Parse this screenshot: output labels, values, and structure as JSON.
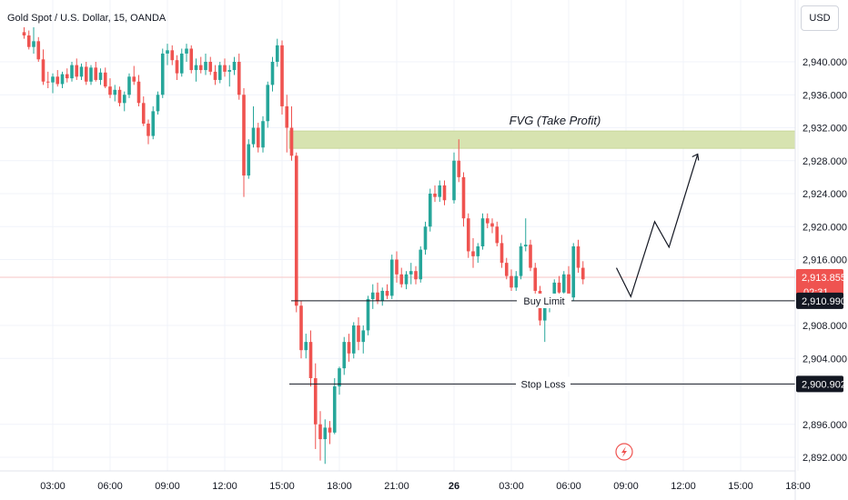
{
  "header": {
    "title": "Gold Spot / U.S. Dollar, 15, OANDA",
    "currency_button": "USD"
  },
  "colors": {
    "up": "#26a69a",
    "down": "#ef5350",
    "fvg_fill": "#d7e3b0",
    "grid": "#f0f3fa",
    "text": "#131722"
  },
  "chart_data": {
    "type": "candlestick",
    "title": "Gold Spot / U.S. Dollar, 15, OANDA",
    "y_ticks": [
      2940,
      2936,
      2932,
      2928,
      2924,
      2920,
      2916,
      2908,
      2904,
      2896,
      2892
    ],
    "y_tick_labels": [
      "2,940.000",
      "2,936.000",
      "2,932.000",
      "2,928.000",
      "2,924.000",
      "2,920.000",
      "2,916.000",
      "2,908.000",
      "2,904.000",
      "2,896.000",
      "2,892.000"
    ],
    "x_tick_labels": [
      "03:00",
      "06:00",
      "09:00",
      "12:00",
      "15:00",
      "18:00",
      "21:00",
      "26",
      "03:00",
      "06:00",
      "09:00",
      "12:00",
      "15:00",
      "18:00"
    ],
    "fvg": {
      "label": "FVG (Take Profit)",
      "low": 2929.5,
      "high": 2931.6
    },
    "buy_limit": {
      "label": "Buy Limit",
      "price": 2910.99,
      "price_label": "2,910.990"
    },
    "stop_loss": {
      "label": "Stop Loss",
      "price": 2900.902,
      "price_label": "2,900.902"
    },
    "current_price": {
      "price": 2913.855,
      "price_label": "2,913.855",
      "countdown": "02:31"
    },
    "projection": [
      [
        "2025-02-26 08:30",
        2915.0
      ],
      [
        "2025-02-26 09:15",
        2911.5
      ],
      [
        "2025-02-26 10:30",
        2920.6
      ],
      [
        "2025-02-26 11:15",
        2917.5
      ],
      [
        "2025-02-26 12:45",
        2928.8
      ]
    ],
    "candles": [
      [
        "2025-02-25 01:30",
        2943.6,
        2944.2,
        2942.8,
        2943.2
      ],
      [
        "2025-02-25 01:45",
        2943.2,
        2943.8,
        2941.5,
        2941.8
      ],
      [
        "2025-02-25 02:00",
        2941.8,
        2944.2,
        2941.0,
        2942.5
      ],
      [
        "2025-02-25 02:15",
        2942.5,
        2943.0,
        2940.0,
        2940.3
      ],
      [
        "2025-02-25 02:30",
        2940.3,
        2941.5,
        2937.2,
        2937.6
      ],
      [
        "2025-02-25 02:45",
        2937.6,
        2938.8,
        2936.8,
        2937.5
      ],
      [
        "2025-02-25 03:00",
        2937.5,
        2938.6,
        2936.2,
        2938.2
      ],
      [
        "2025-02-25 03:15",
        2938.2,
        2939.0,
        2937.0,
        2937.3
      ],
      [
        "2025-02-25 03:30",
        2937.3,
        2938.8,
        2936.8,
        2938.5
      ],
      [
        "2025-02-25 03:45",
        2938.5,
        2939.2,
        2937.5,
        2938.0
      ],
      [
        "2025-02-25 04:00",
        2938.0,
        2940.0,
        2937.6,
        2939.6
      ],
      [
        "2025-02-25 04:15",
        2939.6,
        2940.4,
        2937.8,
        2938.2
      ],
      [
        "2025-02-25 04:30",
        2938.2,
        2939.8,
        2937.8,
        2939.4
      ],
      [
        "2025-02-25 04:45",
        2939.4,
        2940.0,
        2937.2,
        2937.6
      ],
      [
        "2025-02-25 05:00",
        2937.6,
        2939.6,
        2937.2,
        2939.3
      ],
      [
        "2025-02-25 05:15",
        2939.3,
        2940.0,
        2937.6,
        2937.8
      ],
      [
        "2025-02-25 05:30",
        2937.8,
        2939.2,
        2937.2,
        2938.7
      ],
      [
        "2025-02-25 05:45",
        2938.7,
        2939.3,
        2936.8,
        2937.0
      ],
      [
        "2025-02-25 06:00",
        2937.0,
        2938.0,
        2935.6,
        2936.0
      ],
      [
        "2025-02-25 06:15",
        2936.0,
        2937.2,
        2935.2,
        2936.6
      ],
      [
        "2025-02-25 06:30",
        2936.6,
        2937.0,
        2934.6,
        2935.0
      ],
      [
        "2025-02-25 06:45",
        2935.0,
        2936.4,
        2934.0,
        2936.0
      ],
      [
        "2025-02-25 07:00",
        2936.0,
        2938.6,
        2935.6,
        2938.2
      ],
      [
        "2025-02-25 07:15",
        2938.2,
        2939.5,
        2937.2,
        2937.6
      ],
      [
        "2025-02-25 07:30",
        2937.6,
        2938.4,
        2934.6,
        2935.0
      ],
      [
        "2025-02-25 07:45",
        2935.0,
        2935.8,
        2932.2,
        2932.5
      ],
      [
        "2025-02-25 08:00",
        2932.5,
        2933.0,
        2930.0,
        2931.0
      ],
      [
        "2025-02-25 08:15",
        2931.0,
        2934.6,
        2930.6,
        2934.0
      ],
      [
        "2025-02-25 08:30",
        2934.0,
        2936.4,
        2933.6,
        2936.0
      ],
      [
        "2025-02-25 08:45",
        2936.0,
        2941.6,
        2935.6,
        2941.0
      ],
      [
        "2025-02-25 09:00",
        2941.0,
        2942.2,
        2939.6,
        2941.4
      ],
      [
        "2025-02-25 09:15",
        2941.4,
        2942.0,
        2939.6,
        2940.2
      ],
      [
        "2025-02-25 09:30",
        2940.2,
        2940.8,
        2937.8,
        2938.6
      ],
      [
        "2025-02-25 09:45",
        2938.6,
        2941.6,
        2938.2,
        2941.0
      ],
      [
        "2025-02-25 10:00",
        2941.0,
        2942.2,
        2940.0,
        2941.6
      ],
      [
        "2025-02-25 10:15",
        2941.6,
        2942.0,
        2938.6,
        2939.0
      ],
      [
        "2025-02-25 10:30",
        2939.0,
        2940.4,
        2937.6,
        2939.6
      ],
      [
        "2025-02-25 10:45",
        2939.6,
        2940.6,
        2938.6,
        2939.0
      ],
      [
        "2025-02-25 11:00",
        2939.0,
        2941.0,
        2938.4,
        2940.0
      ],
      [
        "2025-02-25 11:15",
        2940.0,
        2940.6,
        2938.4,
        2938.8
      ],
      [
        "2025-02-25 11:30",
        2938.8,
        2939.6,
        2937.2,
        2937.8
      ],
      [
        "2025-02-25 11:45",
        2937.8,
        2940.0,
        2937.4,
        2939.6
      ],
      [
        "2025-02-25 12:00",
        2939.6,
        2940.4,
        2938.2,
        2938.8
      ],
      [
        "2025-02-25 12:15",
        2938.8,
        2939.6,
        2937.0,
        2939.0
      ],
      [
        "2025-02-25 12:30",
        2939.0,
        2940.6,
        2938.4,
        2940.0
      ],
      [
        "2025-02-25 12:45",
        2940.0,
        2941.0,
        2935.4,
        2936.0
      ],
      [
        "2025-02-25 13:00",
        2936.0,
        2936.8,
        2923.6,
        2926.2
      ],
      [
        "2025-02-25 13:15",
        2926.2,
        2930.6,
        2925.8,
        2930.0
      ],
      [
        "2025-02-25 13:30",
        2930.0,
        2934.6,
        2929.6,
        2932.0
      ],
      [
        "2025-02-25 13:45",
        2932.0,
        2932.6,
        2929.0,
        2929.6
      ],
      [
        "2025-02-25 14:00",
        2929.6,
        2933.4,
        2929.0,
        2932.8
      ],
      [
        "2025-02-25 14:15",
        2932.8,
        2937.6,
        2932.0,
        2937.2
      ],
      [
        "2025-02-25 14:30",
        2937.2,
        2940.6,
        2936.4,
        2940.0
      ],
      [
        "2025-02-25 14:45",
        2940.0,
        2942.8,
        2939.4,
        2942.0
      ],
      [
        "2025-02-25 15:00",
        2942.0,
        2942.6,
        2933.6,
        2934.6
      ],
      [
        "2025-02-25 15:15",
        2934.6,
        2936.0,
        2929.0,
        2932.0
      ],
      [
        "2025-02-25 15:30",
        2932.0,
        2934.6,
        2928.0,
        2928.6
      ],
      [
        "2025-02-25 15:45",
        2928.6,
        2929.0,
        2909.6,
        2910.4
      ],
      [
        "2025-02-25 16:00",
        2910.4,
        2911.0,
        2904.0,
        2905.0
      ],
      [
        "2025-02-25 16:15",
        2905.0,
        2907.0,
        2904.0,
        2906.0
      ],
      [
        "2025-02-25 16:30",
        2906.0,
        2907.4,
        2900.6,
        2901.6
      ],
      [
        "2025-02-25 16:45",
        2901.6,
        2903.4,
        2893.0,
        2896.0
      ],
      [
        "2025-02-25 17:00",
        2896.0,
        2897.6,
        2891.6,
        2894.2
      ],
      [
        "2025-02-25 17:15",
        2894.2,
        2896.6,
        2891.2,
        2895.6
      ],
      [
        "2025-02-25 17:30",
        2895.6,
        2896.4,
        2893.6,
        2895.0
      ],
      [
        "2025-02-25 17:45",
        2895.0,
        2901.6,
        2894.8,
        2900.6
      ],
      [
        "2025-02-25 18:00",
        2900.6,
        2903.0,
        2899.6,
        2902.8
      ],
      [
        "2025-02-25 18:15",
        2902.8,
        2906.6,
        2902.0,
        2906.0
      ],
      [
        "2025-02-25 18:30",
        2906.0,
        2907.0,
        2903.6,
        2904.6
      ],
      [
        "2025-02-25 18:45",
        2904.6,
        2908.4,
        2904.0,
        2908.0
      ],
      [
        "2025-02-25 19:00",
        2908.0,
        2909.0,
        2905.0,
        2906.0
      ],
      [
        "2025-02-25 19:15",
        2906.0,
        2908.0,
        2904.6,
        2907.4
      ],
      [
        "2025-02-25 19:30",
        2907.4,
        2911.6,
        2906.8,
        2911.2
      ],
      [
        "2025-02-25 19:45",
        2911.2,
        2913.0,
        2910.0,
        2912.0
      ],
      [
        "2025-02-25 20:00",
        2912.0,
        2913.2,
        2910.6,
        2911.0
      ],
      [
        "2025-02-25 20:15",
        2911.0,
        2912.6,
        2910.4,
        2912.2
      ],
      [
        "2025-02-25 20:30",
        2912.2,
        2913.0,
        2911.2,
        2911.6
      ],
      [
        "2025-02-25 20:45",
        2911.6,
        2916.6,
        2911.2,
        2916.0
      ],
      [
        "2025-02-25 21:00",
        2916.0,
        2917.0,
        2913.2,
        2914.2
      ],
      [
        "2025-02-25 21:15",
        2914.2,
        2915.0,
        2912.6,
        2913.0
      ],
      [
        "2025-02-25 21:30",
        2913.0,
        2914.6,
        2912.4,
        2914.2
      ],
      [
        "2025-02-25 21:45",
        2914.2,
        2915.6,
        2913.0,
        2914.6
      ],
      [
        "2025-02-25 22:00",
        2914.6,
        2915.2,
        2913.0,
        2913.6
      ],
      [
        "2025-02-25 22:15",
        2913.6,
        2917.6,
        2913.2,
        2917.2
      ],
      [
        "2025-02-25 22:30",
        2917.2,
        2920.6,
        2916.6,
        2920.0
      ],
      [
        "2025-02-25 22:45",
        2920.0,
        2924.6,
        2919.4,
        2924.0
      ],
      [
        "2025-02-25 23:00",
        2924.0,
        2925.0,
        2923.0,
        2923.6
      ],
      [
        "2025-02-25 23:15",
        2923.6,
        2925.6,
        2923.0,
        2925.0
      ],
      [
        "2025-02-25 23:30",
        2925.0,
        2925.6,
        2922.6,
        2923.2
      ],
      [
        "2025-02-26 00:00",
        2923.2,
        2929.0,
        2922.8,
        2928.0
      ],
      [
        "2025-02-26 00:15",
        2928.0,
        2930.6,
        2925.4,
        2926.0
      ],
      [
        "2025-02-26 00:30",
        2926.0,
        2926.6,
        2920.0,
        2921.0
      ],
      [
        "2025-02-26 00:45",
        2921.0,
        2921.6,
        2916.2,
        2917.0
      ],
      [
        "2025-02-26 01:00",
        2917.0,
        2918.6,
        2915.0,
        2916.4
      ],
      [
        "2025-02-26 01:15",
        2916.4,
        2918.0,
        2915.6,
        2917.6
      ],
      [
        "2025-02-26 01:30",
        2917.6,
        2921.6,
        2917.2,
        2921.0
      ],
      [
        "2025-02-26 01:45",
        2921.0,
        2921.6,
        2919.8,
        2920.4
      ],
      [
        "2025-02-26 02:00",
        2920.4,
        2921.0,
        2919.2,
        2920.0
      ],
      [
        "2025-02-26 02:15",
        2920.0,
        2920.6,
        2917.6,
        2918.0
      ],
      [
        "2025-02-26 02:30",
        2918.0,
        2919.0,
        2915.0,
        2915.6
      ],
      [
        "2025-02-26 02:45",
        2915.6,
        2916.2,
        2913.6,
        2914.0
      ],
      [
        "2025-02-26 03:00",
        2914.0,
        2914.8,
        2912.2,
        2912.6
      ],
      [
        "2025-02-26 03:15",
        2912.6,
        2914.6,
        2912.2,
        2914.0
      ],
      [
        "2025-02-26 03:30",
        2914.0,
        2918.0,
        2913.6,
        2917.6
      ],
      [
        "2025-02-26 03:45",
        2917.6,
        2921.0,
        2917.0,
        2917.8
      ],
      [
        "2025-02-26 04:00",
        2917.8,
        2918.4,
        2914.6,
        2915.0
      ],
      [
        "2025-02-26 04:15",
        2915.0,
        2915.6,
        2911.6,
        2912.2
      ],
      [
        "2025-02-26 04:30",
        2912.2,
        2912.8,
        2908.0,
        2908.6
      ],
      [
        "2025-02-26 04:45",
        2908.6,
        2911.0,
        2906.0,
        2910.4
      ],
      [
        "2025-02-26 05:00",
        2910.4,
        2911.6,
        2909.6,
        2911.0
      ],
      [
        "2025-02-26 05:15",
        2911.0,
        2913.6,
        2910.4,
        2913.2
      ],
      [
        "2025-02-26 05:30",
        2913.2,
        2914.0,
        2911.6,
        2912.0
      ],
      [
        "2025-02-26 05:45",
        2912.0,
        2914.6,
        2911.4,
        2914.2
      ],
      [
        "2025-02-26 06:00",
        2914.2,
        2915.2,
        2910.6,
        2911.4
      ],
      [
        "2025-02-26 06:15",
        2911.4,
        2918.0,
        2911.0,
        2917.6
      ],
      [
        "2025-02-26 06:30",
        2917.6,
        2918.4,
        2914.4,
        2915.0
      ],
      [
        "2025-02-26 06:45",
        2915.0,
        2915.8,
        2913.0,
        2913.6
      ]
    ]
  }
}
